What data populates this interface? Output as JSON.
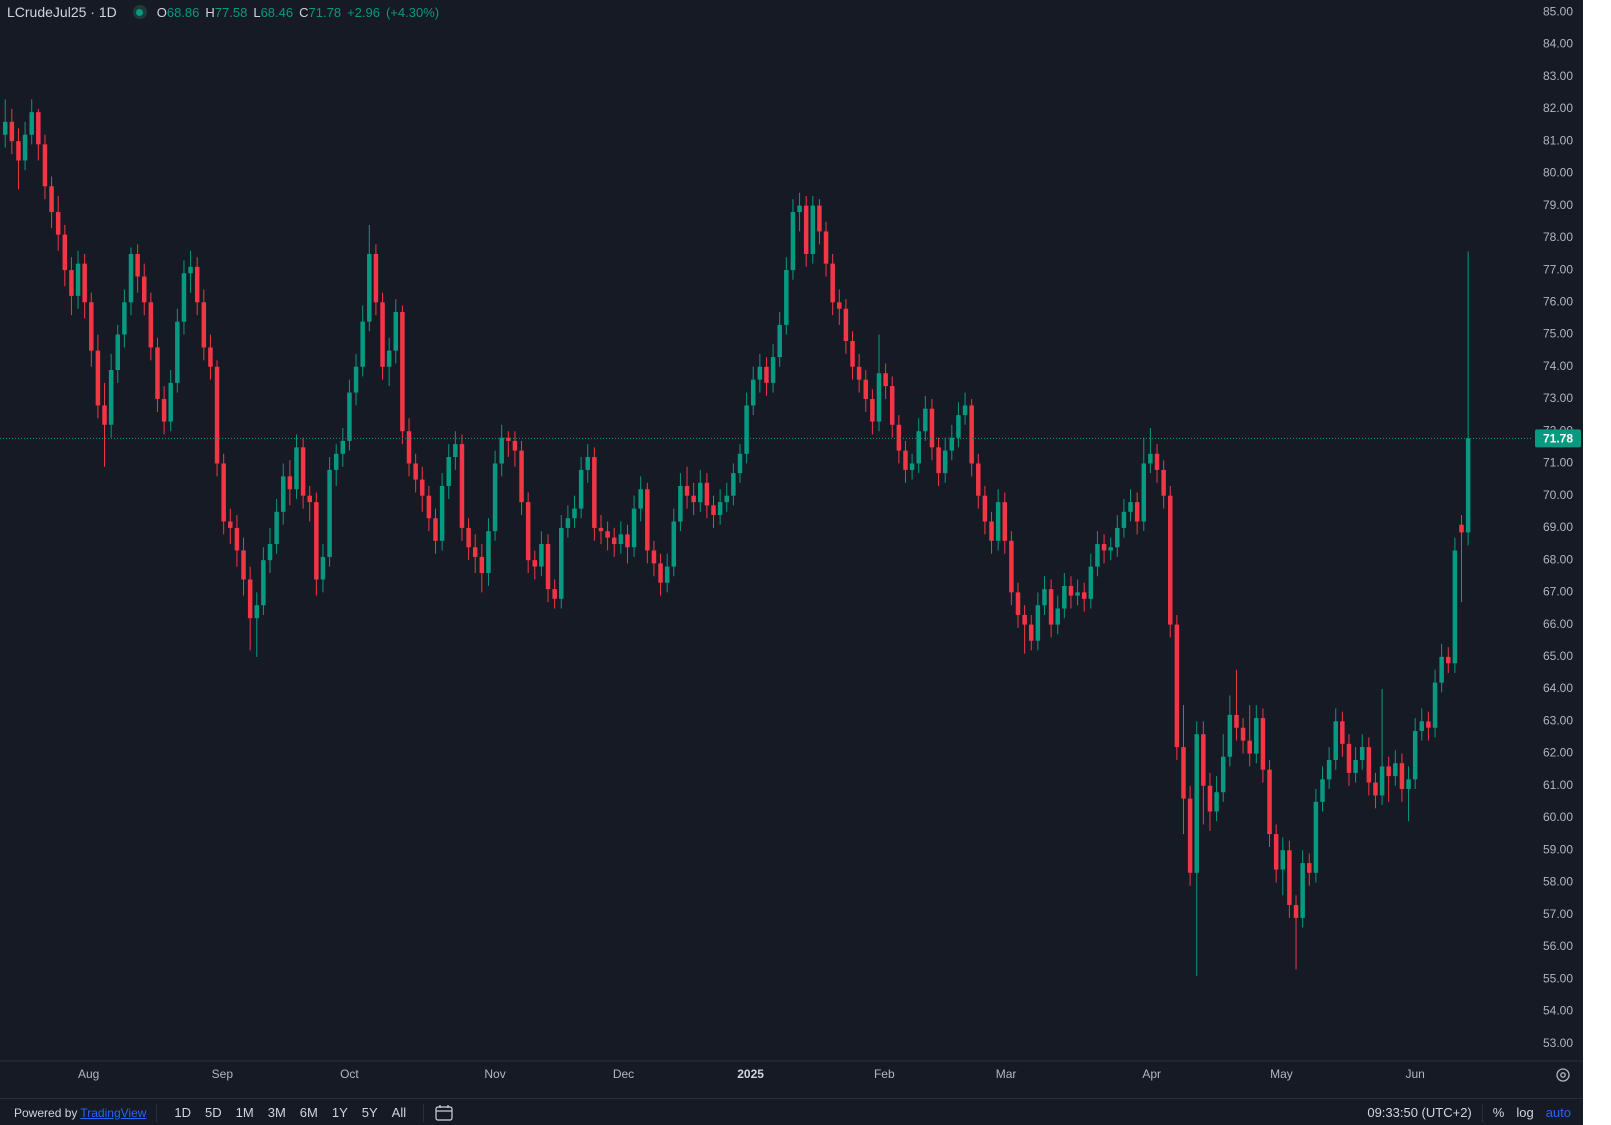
{
  "chart_data": {
    "type": "candlestick",
    "symbol": "LCrudeJul25 · 1D",
    "ohlc_labels": [
      "O",
      "H",
      "L",
      "C"
    ],
    "change": "+2.96",
    "change_percent": "(+4.30%)",
    "up_color": "#089981",
    "down_color": "#f23645",
    "grid": false,
    "log_scale": false,
    "ylim": [
      52.46,
      85.38
    ],
    "yticks": [
      {
        "value": 53,
        "label": "53.00"
      },
      {
        "value": 54,
        "label": "54.00"
      },
      {
        "value": 55,
        "label": "55.00"
      },
      {
        "value": 56,
        "label": "56.00"
      },
      {
        "value": 57,
        "label": "57.00"
      },
      {
        "value": 58,
        "label": "58.00"
      },
      {
        "value": 59,
        "label": "59.00"
      },
      {
        "value": 60,
        "label": "60.00"
      },
      {
        "value": 61,
        "label": "61.00"
      },
      {
        "value": 62,
        "label": "62.00"
      },
      {
        "value": 63,
        "label": "63.00"
      },
      {
        "value": 64,
        "label": "64.00"
      },
      {
        "value": 65,
        "label": "65.00"
      },
      {
        "value": 66,
        "label": "66.00"
      },
      {
        "value": 67,
        "label": "67.00"
      },
      {
        "value": 68,
        "label": "68.00"
      },
      {
        "value": 69,
        "label": "69.00"
      },
      {
        "value": 70,
        "label": "70.00"
      },
      {
        "value": 71,
        "label": "71.00"
      },
      {
        "value": 72,
        "label": "72.00"
      },
      {
        "value": 73,
        "label": "73.00"
      },
      {
        "value": 74,
        "label": "74.00"
      },
      {
        "value": 75,
        "label": "75.00"
      },
      {
        "value": 76,
        "label": "76.00"
      },
      {
        "value": 77,
        "label": "77.00"
      },
      {
        "value": 78,
        "label": "78.00"
      },
      {
        "value": 79,
        "label": "79.00"
      },
      {
        "value": 80,
        "label": "80.00"
      },
      {
        "value": 81,
        "label": "81.00"
      },
      {
        "value": 82,
        "label": "82.00"
      },
      {
        "value": 83,
        "label": "83.00"
      },
      {
        "value": 84,
        "label": "84.00"
      },
      {
        "value": 85,
        "label": "85.00"
      }
    ],
    "xlim": [
      -0.79,
      230.8
    ],
    "xticks": [
      {
        "value": 12.6,
        "label": "Aug"
      },
      {
        "value": 32.8,
        "label": "Sep"
      },
      {
        "value": 52,
        "label": "Oct"
      },
      {
        "value": 74,
        "label": "Nov"
      },
      {
        "value": 93.4,
        "label": "Dec"
      },
      {
        "value": 112.6,
        "label": "2025"
      },
      {
        "value": 132.8,
        "label": "Feb"
      },
      {
        "value": 151.2,
        "label": "Mar"
      },
      {
        "value": 173.2,
        "label": "Apr"
      },
      {
        "value": 192.8,
        "label": "May"
      },
      {
        "value": 213,
        "label": "Jun"
      }
    ],
    "ohlc": [
      [
        81.2,
        82.3,
        80.8,
        81.6
      ],
      [
        81.6,
        82.0,
        80.6,
        81.0
      ],
      [
        81.0,
        81.4,
        79.5,
        80.4
      ],
      [
        80.4,
        81.6,
        80.1,
        81.2
      ],
      [
        81.2,
        82.3,
        80.9,
        81.9
      ],
      [
        81.9,
        82.0,
        80.4,
        80.9
      ],
      [
        80.9,
        81.2,
        79.2,
        79.6
      ],
      [
        79.6,
        79.9,
        78.3,
        78.8
      ],
      [
        78.8,
        79.3,
        77.6,
        78.1
      ],
      [
        78.1,
        78.4,
        76.5,
        77.0
      ],
      [
        77.0,
        77.4,
        75.6,
        76.2
      ],
      [
        76.2,
        77.6,
        75.8,
        77.2
      ],
      [
        77.2,
        77.5,
        75.5,
        76.0
      ],
      [
        76.0,
        76.3,
        74.0,
        74.5
      ],
      [
        74.5,
        75.0,
        72.4,
        72.8
      ],
      [
        72.8,
        73.5,
        70.9,
        72.2
      ],
      [
        72.2,
        74.4,
        71.8,
        73.9
      ],
      [
        73.9,
        75.3,
        73.5,
        75.0
      ],
      [
        75.0,
        76.4,
        74.6,
        76.0
      ],
      [
        76.0,
        77.7,
        75.6,
        77.5
      ],
      [
        77.5,
        77.8,
        76.3,
        76.8
      ],
      [
        76.8,
        77.2,
        75.6,
        76.0
      ],
      [
        76.0,
        76.3,
        74.2,
        74.6
      ],
      [
        74.6,
        74.9,
        72.6,
        73.0
      ],
      [
        73.0,
        73.4,
        71.9,
        72.3
      ],
      [
        72.3,
        73.9,
        72.0,
        73.5
      ],
      [
        73.5,
        75.8,
        73.2,
        75.4
      ],
      [
        75.4,
        77.3,
        75.0,
        76.9
      ],
      [
        76.9,
        77.6,
        76.3,
        77.1
      ],
      [
        77.1,
        77.4,
        75.6,
        76.0
      ],
      [
        76.0,
        76.4,
        74.2,
        74.6
      ],
      [
        74.6,
        75.0,
        73.6,
        74.0
      ],
      [
        74.0,
        74.2,
        70.6,
        71.0
      ],
      [
        71.0,
        71.3,
        68.8,
        69.2
      ],
      [
        69.2,
        69.6,
        68.5,
        69.0
      ],
      [
        69.0,
        69.4,
        67.8,
        68.3
      ],
      [
        68.3,
        68.7,
        66.9,
        67.4
      ],
      [
        67.4,
        67.8,
        65.2,
        66.2
      ],
      [
        66.2,
        67.0,
        65.0,
        66.6
      ],
      [
        66.6,
        68.4,
        66.3,
        68.0
      ],
      [
        68.0,
        69.0,
        67.6,
        68.5
      ],
      [
        68.5,
        69.9,
        68.2,
        69.5
      ],
      [
        69.5,
        71.0,
        69.1,
        70.6
      ],
      [
        70.6,
        71.1,
        69.7,
        70.2
      ],
      [
        70.2,
        71.9,
        69.9,
        71.5
      ],
      [
        71.5,
        71.8,
        69.6,
        70.0
      ],
      [
        70.0,
        70.3,
        69.2,
        69.8
      ],
      [
        69.8,
        70.1,
        66.9,
        67.4
      ],
      [
        67.4,
        68.5,
        67.0,
        68.1
      ],
      [
        68.1,
        71.2,
        67.8,
        70.8
      ],
      [
        70.8,
        71.6,
        70.3,
        71.3
      ],
      [
        71.3,
        72.1,
        70.9,
        71.7
      ],
      [
        71.7,
        73.6,
        71.4,
        73.2
      ],
      [
        73.2,
        74.4,
        72.8,
        74.0
      ],
      [
        74.0,
        75.9,
        73.7,
        75.4
      ],
      [
        75.4,
        78.4,
        75.1,
        77.5
      ],
      [
        77.5,
        77.8,
        75.6,
        76.0
      ],
      [
        76.0,
        76.3,
        73.6,
        74.0
      ],
      [
        74.0,
        74.9,
        73.4,
        74.5
      ],
      [
        74.5,
        76.1,
        74.1,
        75.7
      ],
      [
        75.7,
        75.9,
        71.6,
        72.0
      ],
      [
        72.0,
        72.4,
        70.6,
        71.0
      ],
      [
        71.0,
        71.3,
        70.1,
        70.5
      ],
      [
        70.5,
        70.9,
        69.5,
        70.0
      ],
      [
        70.0,
        70.3,
        68.9,
        69.3
      ],
      [
        69.3,
        69.6,
        68.2,
        68.6
      ],
      [
        68.6,
        70.7,
        68.3,
        70.3
      ],
      [
        70.3,
        71.6,
        69.9,
        71.2
      ],
      [
        71.2,
        72.0,
        70.8,
        71.6
      ],
      [
        71.6,
        71.9,
        68.6,
        69.0
      ],
      [
        69.0,
        69.3,
        68.0,
        68.4
      ],
      [
        68.4,
        68.8,
        67.6,
        68.1
      ],
      [
        68.1,
        68.5,
        67.0,
        67.6
      ],
      [
        67.6,
        69.3,
        67.2,
        68.9
      ],
      [
        68.9,
        71.4,
        68.6,
        71.0
      ],
      [
        71.0,
        72.2,
        70.6,
        71.8
      ],
      [
        71.8,
        72.0,
        71.2,
        71.7
      ],
      [
        71.7,
        72.0,
        70.9,
        71.4
      ],
      [
        71.4,
        71.7,
        69.4,
        69.8
      ],
      [
        69.8,
        70.1,
        67.6,
        68.0
      ],
      [
        68.0,
        68.3,
        67.4,
        67.8
      ],
      [
        67.8,
        68.9,
        67.5,
        68.5
      ],
      [
        68.5,
        68.8,
        66.7,
        67.1
      ],
      [
        67.1,
        67.4,
        66.5,
        66.8
      ],
      [
        66.8,
        69.4,
        66.5,
        69.0
      ],
      [
        69.0,
        69.7,
        68.7,
        69.3
      ],
      [
        69.3,
        70.0,
        69.0,
        69.6
      ],
      [
        69.6,
        71.2,
        69.3,
        70.8
      ],
      [
        70.8,
        71.6,
        70.4,
        71.2
      ],
      [
        71.2,
        71.5,
        68.6,
        69.0
      ],
      [
        69.0,
        69.4,
        68.5,
        68.9
      ],
      [
        68.9,
        69.2,
        68.3,
        68.7
      ],
      [
        68.7,
        69.0,
        68.1,
        68.5
      ],
      [
        68.5,
        69.2,
        68.2,
        68.8
      ],
      [
        68.8,
        69.1,
        67.9,
        68.4
      ],
      [
        68.4,
        70.0,
        68.1,
        69.6
      ],
      [
        69.6,
        70.6,
        69.2,
        70.2
      ],
      [
        70.2,
        70.4,
        67.9,
        68.3
      ],
      [
        68.3,
        68.6,
        67.5,
        67.9
      ],
      [
        67.9,
        68.2,
        66.9,
        67.3
      ],
      [
        67.3,
        68.2,
        67.0,
        67.8
      ],
      [
        67.8,
        69.6,
        67.5,
        69.2
      ],
      [
        69.2,
        70.7,
        68.9,
        70.3
      ],
      [
        70.3,
        70.9,
        69.6,
        70.0
      ],
      [
        70.0,
        70.4,
        69.4,
        69.8
      ],
      [
        69.8,
        70.8,
        69.5,
        70.4
      ],
      [
        70.4,
        70.7,
        69.3,
        69.7
      ],
      [
        69.7,
        70.0,
        69.0,
        69.4
      ],
      [
        69.4,
        70.2,
        69.1,
        69.8
      ],
      [
        69.8,
        70.4,
        69.5,
        70.0
      ],
      [
        70.0,
        71.0,
        69.7,
        70.7
      ],
      [
        70.7,
        71.6,
        70.4,
        71.3
      ],
      [
        71.3,
        73.2,
        71.0,
        72.8
      ],
      [
        72.8,
        74.0,
        72.5,
        73.6
      ],
      [
        73.6,
        74.4,
        73.2,
        74.0
      ],
      [
        74.0,
        74.3,
        73.1,
        73.5
      ],
      [
        73.5,
        74.7,
        73.2,
        74.3
      ],
      [
        74.3,
        75.7,
        74.0,
        75.3
      ],
      [
        75.3,
        77.4,
        75.0,
        77.0
      ],
      [
        77.0,
        79.2,
        76.7,
        78.8
      ],
      [
        78.8,
        79.4,
        78.2,
        79.0
      ],
      [
        79.0,
        79.3,
        77.1,
        77.5
      ],
      [
        77.5,
        79.3,
        77.2,
        79.0
      ],
      [
        79.0,
        79.2,
        77.8,
        78.2
      ],
      [
        78.2,
        78.5,
        76.8,
        77.2
      ],
      [
        77.2,
        77.5,
        75.6,
        76.0
      ],
      [
        76.0,
        76.4,
        75.3,
        75.8
      ],
      [
        75.8,
        76.1,
        74.4,
        74.8
      ],
      [
        74.8,
        75.1,
        73.6,
        74.0
      ],
      [
        74.0,
        74.4,
        73.2,
        73.6
      ],
      [
        73.6,
        73.9,
        72.6,
        73.0
      ],
      [
        73.0,
        73.3,
        71.9,
        72.3
      ],
      [
        72.3,
        75.0,
        72.0,
        73.8
      ],
      [
        73.8,
        74.1,
        73.0,
        73.4
      ],
      [
        73.4,
        73.7,
        71.8,
        72.2
      ],
      [
        72.2,
        72.5,
        71.0,
        71.4
      ],
      [
        71.4,
        71.7,
        70.4,
        70.8
      ],
      [
        70.8,
        71.3,
        70.5,
        71.0
      ],
      [
        71.0,
        72.4,
        70.7,
        72.0
      ],
      [
        72.0,
        73.1,
        71.7,
        72.7
      ],
      [
        72.7,
        73.0,
        71.1,
        71.5
      ],
      [
        71.5,
        71.8,
        70.3,
        70.7
      ],
      [
        70.7,
        71.8,
        70.4,
        71.4
      ],
      [
        71.4,
        72.2,
        71.1,
        71.8
      ],
      [
        71.8,
        72.9,
        71.5,
        72.5
      ],
      [
        72.5,
        73.2,
        72.2,
        72.8
      ],
      [
        72.8,
        73.0,
        70.6,
        71.0
      ],
      [
        71.0,
        71.3,
        69.6,
        70.0
      ],
      [
        70.0,
        70.3,
        68.8,
        69.2
      ],
      [
        69.2,
        69.5,
        68.2,
        68.6
      ],
      [
        68.6,
        70.2,
        68.3,
        69.8
      ],
      [
        69.8,
        70.1,
        68.2,
        68.6
      ],
      [
        68.6,
        68.9,
        66.6,
        67.0
      ],
      [
        67.0,
        67.3,
        65.9,
        66.3
      ],
      [
        66.3,
        66.6,
        65.1,
        66.0
      ],
      [
        66.0,
        66.3,
        65.2,
        65.5
      ],
      [
        65.5,
        67.0,
        65.2,
        66.6
      ],
      [
        66.6,
        67.5,
        66.3,
        67.1
      ],
      [
        67.1,
        67.4,
        65.6,
        66.0
      ],
      [
        66.0,
        66.9,
        65.7,
        66.5
      ],
      [
        66.5,
        67.6,
        66.2,
        67.2
      ],
      [
        67.2,
        67.5,
        66.5,
        66.9
      ],
      [
        66.9,
        67.4,
        66.6,
        67.0
      ],
      [
        67.0,
        67.3,
        66.4,
        66.8
      ],
      [
        66.8,
        68.2,
        66.5,
        67.8
      ],
      [
        67.8,
        68.9,
        67.5,
        68.5
      ],
      [
        68.5,
        68.8,
        67.9,
        68.3
      ],
      [
        68.3,
        68.7,
        68.0,
        68.4
      ],
      [
        68.4,
        69.4,
        68.1,
        69.0
      ],
      [
        69.0,
        69.9,
        68.7,
        69.5
      ],
      [
        69.5,
        70.2,
        69.2,
        69.8
      ],
      [
        69.8,
        70.1,
        68.8,
        69.2
      ],
      [
        69.2,
        71.8,
        68.9,
        71.0
      ],
      [
        71.0,
        72.1,
        70.7,
        71.3
      ],
      [
        71.3,
        71.6,
        70.4,
        70.8
      ],
      [
        70.8,
        71.1,
        69.6,
        70.0
      ],
      [
        70.0,
        70.3,
        65.6,
        66.0
      ],
      [
        66.0,
        66.3,
        61.8,
        62.2
      ],
      [
        62.2,
        63.5,
        59.5,
        60.6
      ],
      [
        60.6,
        61.0,
        57.9,
        58.3
      ],
      [
        58.3,
        63.0,
        55.1,
        62.6
      ],
      [
        62.6,
        63.0,
        59.8,
        61.0
      ],
      [
        61.0,
        61.4,
        59.6,
        60.2
      ],
      [
        60.2,
        61.3,
        59.9,
        60.8
      ],
      [
        60.8,
        62.6,
        60.5,
        61.9
      ],
      [
        61.9,
        63.8,
        61.6,
        63.2
      ],
      [
        63.2,
        64.6,
        62.4,
        62.8
      ],
      [
        62.8,
        63.1,
        62.0,
        62.4
      ],
      [
        62.4,
        63.5,
        61.6,
        62.0
      ],
      [
        62.0,
        63.5,
        61.7,
        63.1
      ],
      [
        63.1,
        63.4,
        61.1,
        61.5
      ],
      [
        61.5,
        61.8,
        59.1,
        59.5
      ],
      [
        59.5,
        59.8,
        58.0,
        58.4
      ],
      [
        58.4,
        59.4,
        57.6,
        59.0
      ],
      [
        59.0,
        59.3,
        56.9,
        57.3
      ],
      [
        57.3,
        57.6,
        55.3,
        56.9
      ],
      [
        56.9,
        59.0,
        56.6,
        58.6
      ],
      [
        58.6,
        58.9,
        57.9,
        58.3
      ],
      [
        58.3,
        60.9,
        58.0,
        60.5
      ],
      [
        60.5,
        61.6,
        60.2,
        61.2
      ],
      [
        61.2,
        62.2,
        60.9,
        61.8
      ],
      [
        61.8,
        63.4,
        61.5,
        63.0
      ],
      [
        63.0,
        63.3,
        61.9,
        62.3
      ],
      [
        62.3,
        62.6,
        61.0,
        61.4
      ],
      [
        61.4,
        62.2,
        61.1,
        61.8
      ],
      [
        61.8,
        62.6,
        61.5,
        62.2
      ],
      [
        62.2,
        62.5,
        60.7,
        61.1
      ],
      [
        61.1,
        61.4,
        60.3,
        60.7
      ],
      [
        60.7,
        64.0,
        60.4,
        61.6
      ],
      [
        61.6,
        61.9,
        60.5,
        61.3
      ],
      [
        61.3,
        62.1,
        61.0,
        61.7
      ],
      [
        61.7,
        62.0,
        60.5,
        60.9
      ],
      [
        60.9,
        61.6,
        59.9,
        61.2
      ],
      [
        61.2,
        63.1,
        60.9,
        62.7
      ],
      [
        62.7,
        63.4,
        62.4,
        63.0
      ],
      [
        63.0,
        63.3,
        62.4,
        62.8
      ],
      [
        62.8,
        64.6,
        62.5,
        64.2
      ],
      [
        64.2,
        65.4,
        63.9,
        65.0
      ],
      [
        65.0,
        65.3,
        64.5,
        64.8
      ],
      [
        64.8,
        68.7,
        64.5,
        68.3
      ],
      [
        69.1,
        69.4,
        66.7,
        68.86
      ],
      [
        68.86,
        77.58,
        68.46,
        71.78
      ]
    ]
  },
  "toolbar": {
    "powered_by": "Powered by",
    "brand": "TradingView",
    "ranges": [
      "1D",
      "5D",
      "1M",
      "3M",
      "6M",
      "1Y",
      "5Y",
      "All"
    ],
    "clock": "09:33:50 (UTC+2)",
    "percent": "%",
    "log": "log",
    "auto": "auto"
  }
}
